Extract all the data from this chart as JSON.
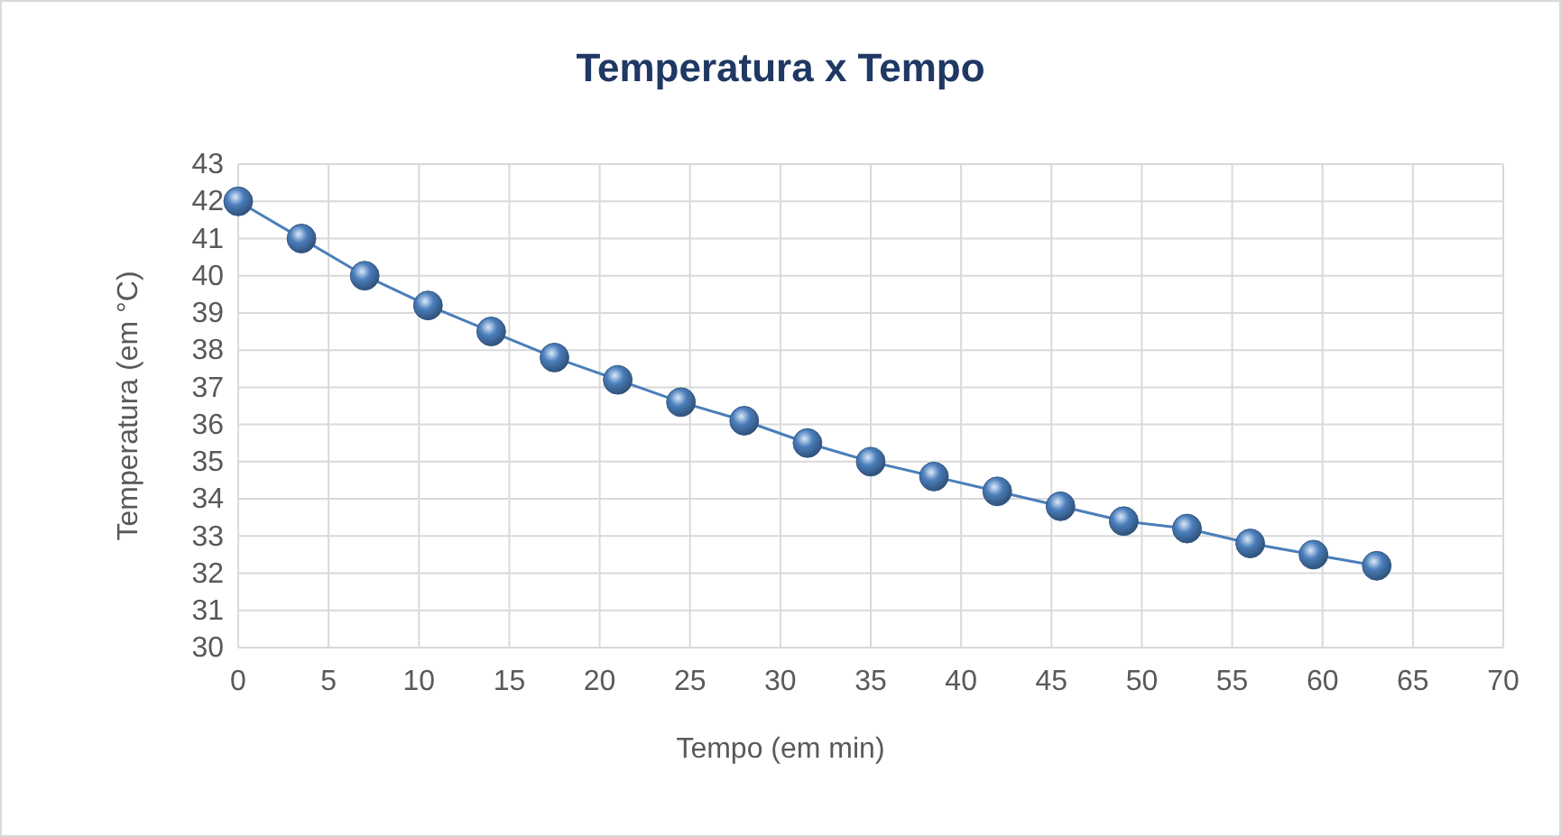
{
  "chart_data": {
    "type": "line",
    "title": "Temperatura x Tempo",
    "xlabel": "Tempo (em min)",
    "ylabel": "Temperatura (em °C)",
    "x": [
      0,
      3.5,
      7,
      10.5,
      14,
      17.5,
      21,
      24.5,
      28,
      31.5,
      35,
      38.5,
      42,
      45.5,
      49,
      52.5,
      56,
      59.5,
      63
    ],
    "series": [
      {
        "color": "#4a7ebb",
        "values": [
          42,
          41,
          40,
          39.2,
          38.5,
          37.8,
          37.2,
          36.6,
          36.1,
          35.5,
          35,
          34.6,
          34.2,
          33.8,
          33.4,
          33.2,
          32.8,
          32.5,
          32.2
        ]
      }
    ],
    "xlim": [
      0,
      70
    ],
    "xticks": [
      0,
      5,
      10,
      15,
      20,
      25,
      30,
      35,
      40,
      45,
      50,
      55,
      60,
      65,
      70
    ],
    "ylim": [
      30,
      43
    ],
    "yticks": [
      30,
      31,
      32,
      33,
      34,
      35,
      36,
      37,
      38,
      39,
      40,
      41,
      42,
      43
    ],
    "grid": true,
    "marker": "circle",
    "line_style": "solid"
  }
}
